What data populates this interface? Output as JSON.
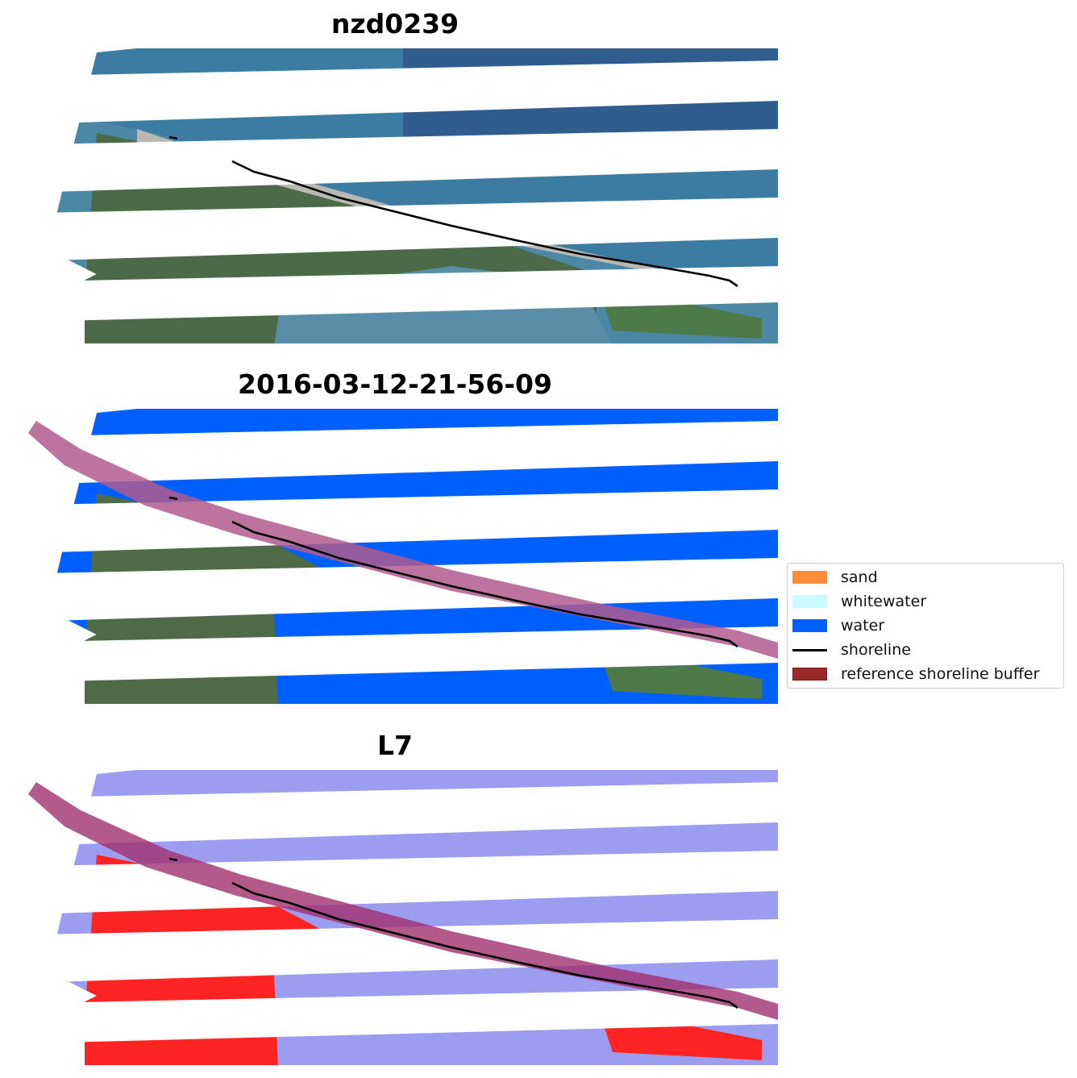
{
  "panels": [
    {
      "title": "nzd0239",
      "kind": "rgb"
    },
    {
      "title": "2016-03-12-21-56-09",
      "kind": "classified"
    },
    {
      "title": "L7",
      "kind": "index"
    }
  ],
  "legend": {
    "items": [
      {
        "label": "sand",
        "color": "#ff8c3a",
        "type": "patch"
      },
      {
        "label": "whitewater",
        "color": "#c9fbff",
        "type": "patch"
      },
      {
        "label": "water",
        "color": "#0060ff",
        "type": "patch"
      },
      {
        "label": "shoreline",
        "color": "#000000",
        "type": "line"
      },
      {
        "label": "reference shoreline buffer",
        "color": "#9a2a2a",
        "type": "patch"
      }
    ]
  },
  "colors": {
    "sea_rgb": "#3b78a0",
    "deep_sea_rgb": "#2f5f92",
    "land": "#4f6b45",
    "water_class": "#0060ff",
    "buffer": "#b05a8e",
    "index_water": "#9c9cf0",
    "index_land": "#ff2424",
    "shoreline": "#000000"
  }
}
